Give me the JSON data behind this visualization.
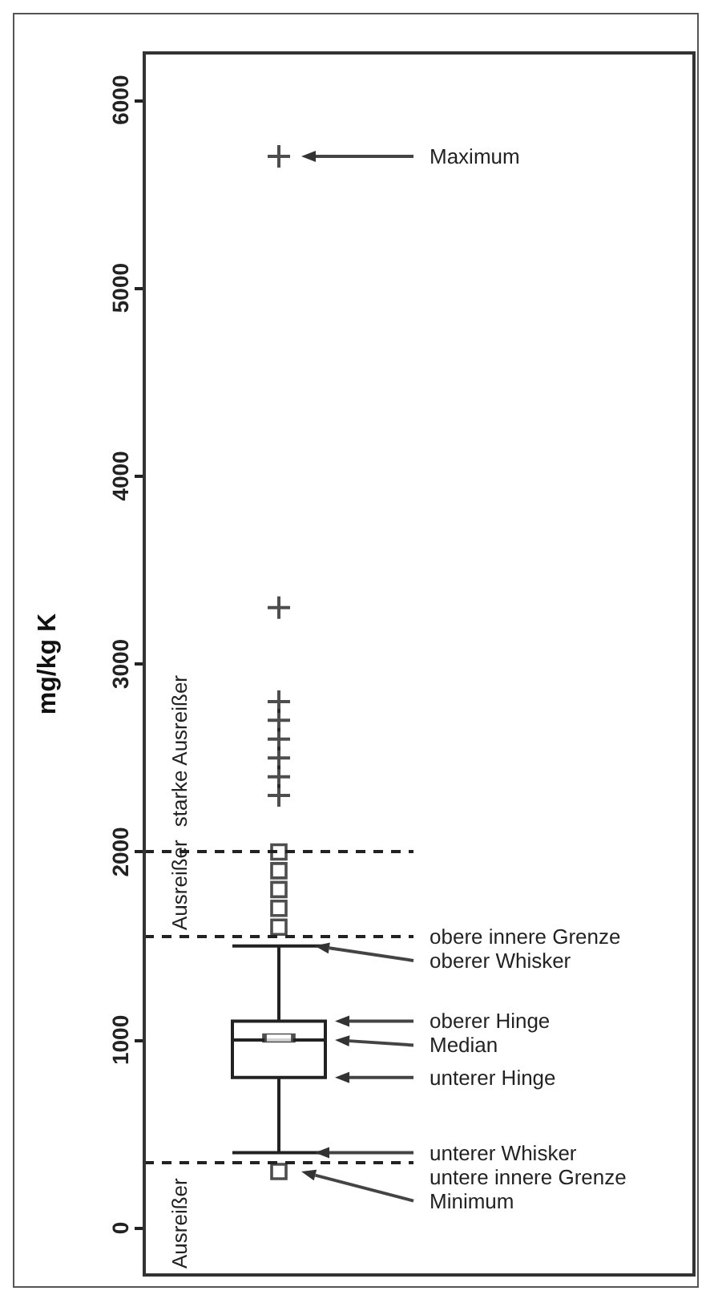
{
  "chart_data": {
    "type": "box",
    "ylabel": "mg/kg K",
    "categories": [
      null
    ],
    "ylim": [
      -250,
      6250
    ],
    "yticks": [
      0,
      1000,
      2000,
      3000,
      4000,
      5000,
      6000
    ],
    "series": [
      {
        "color": "#222222",
        "boxes": [
          {
            "low": 400,
            "q1": 800,
            "median": 1000,
            "q3": 1100,
            "high": 1500,
            "mean": 1010
          }
        ]
      },
      {
        "type": "scatter",
        "marker": "square",
        "color": "#222222",
        "x": [
          null,
          null,
          null,
          null,
          null,
          null
        ],
        "values": [
          2000,
          1900,
          1800,
          1700,
          1600,
          300
        ]
      },
      {
        "type": "scatter",
        "marker": "cross",
        "color": "#222222",
        "x": [
          null,
          null,
          null,
          null,
          null,
          null,
          null,
          null
        ],
        "values": [
          2300,
          2400,
          2500,
          2600,
          2700,
          2800,
          3300,
          5700
        ]
      }
    ],
    "ref_lines": [
      {
        "axis": "y",
        "value": 2000,
        "label": null,
        "line_style": "dashed"
      },
      {
        "axis": "y",
        "value": 1550,
        "label": "obere innere Grenze",
        "line_style": "dashed"
      },
      {
        "axis": "y",
        "value": 350,
        "label": "untere innere Grenze",
        "line_style": "dashed"
      }
    ],
    "annotations": [
      "starke Ausreißer",
      "Ausreißer",
      "Ausreißer",
      "Maximum",
      "oberer Whisker",
      "oberer Hinge",
      "Median",
      "unterer Hinge",
      "unterer Whisker",
      "Minimum"
    ]
  }
}
